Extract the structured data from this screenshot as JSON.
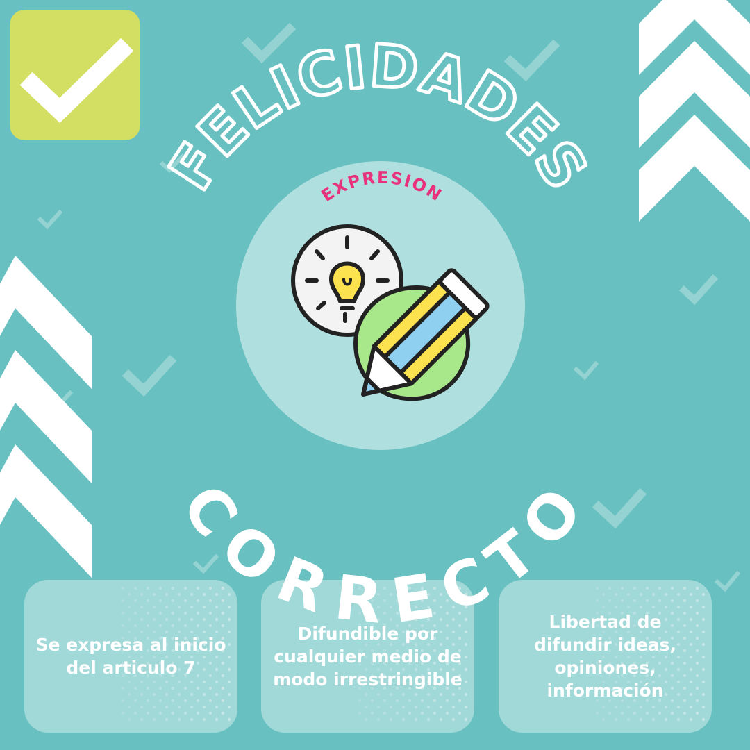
{
  "heading_top": "FELICIDADES",
  "subtitle": "EXPRESION",
  "heading_bottom": "CORRECTO",
  "icons": {
    "badge": "checkmark-icon",
    "center": "lightbulb-pencil-icon",
    "decor": "chevron-up-icon"
  },
  "colors": {
    "background": "#68c0c1",
    "badge": "#d3df62",
    "subtitle": "#e8327c",
    "circle": "#b0dfe0",
    "bulb": "#fde24f",
    "pencil_bg": "#a8e88a",
    "pencil_blue": "#8fd0f0"
  },
  "cards": [
    {
      "lines": [
        "Se expresa al inicio",
        "del articulo 7"
      ]
    },
    {
      "lines": [
        "Difundible por",
        "cualquier medio de",
        "modo irrestringible"
      ]
    },
    {
      "lines": [
        "Libertad de",
        "difundir ideas,",
        "opiniones,",
        "información"
      ]
    }
  ]
}
